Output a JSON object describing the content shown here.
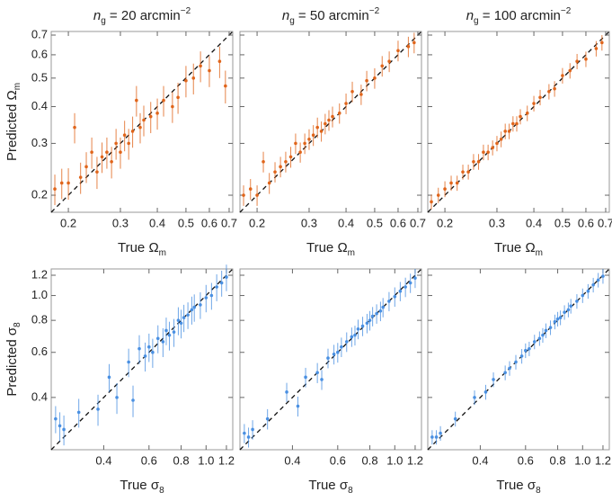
{
  "chart_data": [
    {
      "type": "scatter",
      "title": [
        "n",
        "g",
        " = 20 arcmin",
        "−2"
      ],
      "xlabel": [
        "True Ω",
        "m"
      ],
      "ylabel": [
        "Predicted Ω",
        "m"
      ],
      "color": "#e0651b",
      "xscale": "log",
      "yscale": "log",
      "identity_line": true,
      "xlim": [
        0.175,
        0.72
      ],
      "ylim": [
        0.175,
        0.72
      ],
      "xticks": [
        0.2,
        0.3,
        0.4,
        0.5,
        0.6,
        0.7
      ],
      "yticks": [
        0.2,
        0.3,
        0.4,
        0.5,
        0.6,
        0.7
      ],
      "ytick_labels": true,
      "x": [
        0.18,
        0.19,
        0.2,
        0.21,
        0.22,
        0.23,
        0.24,
        0.25,
        0.26,
        0.27,
        0.28,
        0.29,
        0.3,
        0.31,
        0.32,
        0.33,
        0.34,
        0.35,
        0.36,
        0.38,
        0.4,
        0.42,
        0.45,
        0.47,
        0.5,
        0.53,
        0.56,
        0.6,
        0.65,
        0.68
      ],
      "y": [
        0.21,
        0.22,
        0.22,
        0.34,
        0.23,
        0.25,
        0.28,
        0.24,
        0.27,
        0.28,
        0.26,
        0.3,
        0.28,
        0.32,
        0.3,
        0.33,
        0.42,
        0.34,
        0.36,
        0.37,
        0.38,
        0.42,
        0.4,
        0.43,
        0.49,
        0.5,
        0.55,
        0.53,
        0.57,
        0.47
      ],
      "yerr": [
        0.025,
        0.026,
        0.027,
        0.04,
        0.028,
        0.03,
        0.034,
        0.03,
        0.032,
        0.034,
        0.032,
        0.036,
        0.034,
        0.038,
        0.036,
        0.04,
        0.05,
        0.04,
        0.043,
        0.045,
        0.046,
        0.05,
        0.048,
        0.052,
        0.06,
        0.06,
        0.066,
        0.064,
        0.07,
        0.06
      ]
    },
    {
      "type": "scatter",
      "title": [
        "n",
        "g",
        " = 50 arcmin",
        "−2"
      ],
      "xlabel": [
        "True Ω",
        "m"
      ],
      "color": "#e0651b",
      "xscale": "log",
      "yscale": "log",
      "identity_line": true,
      "xlim": [
        0.175,
        0.72
      ],
      "ylim": [
        0.175,
        0.72
      ],
      "xticks": [
        0.2,
        0.3,
        0.4,
        0.5,
        0.6,
        0.7
      ],
      "yticks": [
        0.2,
        0.3,
        0.4,
        0.5,
        0.6,
        0.7
      ],
      "ytick_labels": false,
      "x": [
        0.18,
        0.19,
        0.2,
        0.21,
        0.22,
        0.23,
        0.24,
        0.25,
        0.26,
        0.27,
        0.28,
        0.29,
        0.3,
        0.31,
        0.32,
        0.33,
        0.34,
        0.35,
        0.36,
        0.38,
        0.4,
        0.42,
        0.45,
        0.47,
        0.5,
        0.53,
        0.56,
        0.6,
        0.65,
        0.68
      ],
      "y": [
        0.2,
        0.21,
        0.2,
        0.26,
        0.22,
        0.24,
        0.25,
        0.26,
        0.27,
        0.3,
        0.28,
        0.3,
        0.31,
        0.32,
        0.34,
        0.33,
        0.35,
        0.36,
        0.37,
        0.38,
        0.41,
        0.45,
        0.44,
        0.49,
        0.5,
        0.55,
        0.57,
        0.62,
        0.64,
        0.66
      ],
      "yerr": [
        0.016,
        0.017,
        0.016,
        0.021,
        0.018,
        0.019,
        0.02,
        0.021,
        0.022,
        0.024,
        0.022,
        0.024,
        0.025,
        0.026,
        0.027,
        0.026,
        0.028,
        0.029,
        0.03,
        0.03,
        0.033,
        0.036,
        0.035,
        0.039,
        0.04,
        0.044,
        0.046,
        0.05,
        0.051,
        0.053
      ]
    },
    {
      "type": "scatter",
      "title": [
        "n",
        "g",
        " = 100 arcmin",
        "−2"
      ],
      "xlabel": [
        "True Ω",
        "m"
      ],
      "color": "#e0651b",
      "xscale": "log",
      "yscale": "log",
      "identity_line": true,
      "xlim": [
        0.175,
        0.72
      ],
      "ylim": [
        0.175,
        0.72
      ],
      "xticks": [
        0.2,
        0.3,
        0.4,
        0.5,
        0.6,
        0.7
      ],
      "yticks": [
        0.2,
        0.3,
        0.4,
        0.5,
        0.6,
        0.7
      ],
      "ytick_labels": false,
      "x": [
        0.18,
        0.19,
        0.2,
        0.21,
        0.22,
        0.23,
        0.24,
        0.25,
        0.26,
        0.27,
        0.28,
        0.29,
        0.3,
        0.31,
        0.32,
        0.33,
        0.34,
        0.35,
        0.36,
        0.38,
        0.4,
        0.42,
        0.45,
        0.47,
        0.5,
        0.53,
        0.56,
        0.6,
        0.65,
        0.68
      ],
      "y": [
        0.19,
        0.2,
        0.21,
        0.22,
        0.22,
        0.24,
        0.24,
        0.26,
        0.26,
        0.28,
        0.28,
        0.29,
        0.3,
        0.31,
        0.33,
        0.33,
        0.35,
        0.35,
        0.37,
        0.38,
        0.41,
        0.43,
        0.45,
        0.46,
        0.51,
        0.53,
        0.57,
        0.58,
        0.63,
        0.66
      ],
      "yerr": [
        0.011,
        0.012,
        0.013,
        0.013,
        0.013,
        0.014,
        0.014,
        0.016,
        0.016,
        0.017,
        0.017,
        0.017,
        0.018,
        0.019,
        0.02,
        0.02,
        0.021,
        0.021,
        0.022,
        0.023,
        0.025,
        0.026,
        0.027,
        0.028,
        0.031,
        0.032,
        0.034,
        0.035,
        0.038,
        0.04
      ]
    },
    {
      "type": "scatter",
      "xlabel": [
        "True σ",
        "8"
      ],
      "ylabel": [
        "Predicted σ",
        "8"
      ],
      "color": "#4a90e2",
      "xscale": "log",
      "yscale": "log",
      "identity_line": true,
      "xlim": [
        0.25,
        1.27
      ],
      "ylim": [
        0.25,
        1.27
      ],
      "xticks": [
        0.4,
        0.6,
        0.8,
        {
          "value": 1,
          "label": "1.0"
        },
        1.2
      ],
      "yticks": [
        0.4,
        0.6,
        0.8,
        {
          "value": 1,
          "label": "1.0"
        },
        1.2
      ],
      "ytick_labels": true,
      "x": [
        0.26,
        0.27,
        0.28,
        0.32,
        0.38,
        0.42,
        0.45,
        0.5,
        0.52,
        0.55,
        0.58,
        0.6,
        0.62,
        0.65,
        0.68,
        0.7,
        0.72,
        0.75,
        0.78,
        0.8,
        0.82,
        0.85,
        0.88,
        0.9,
        0.95,
        1.0,
        1.05,
        1.1,
        1.15,
        1.2
      ],
      "y": [
        0.33,
        0.31,
        0.3,
        0.35,
        0.36,
        0.48,
        0.4,
        0.55,
        0.39,
        0.62,
        0.58,
        0.63,
        0.6,
        0.68,
        0.66,
        0.73,
        0.7,
        0.72,
        0.8,
        0.78,
        0.82,
        0.84,
        0.88,
        0.9,
        0.92,
        0.98,
        1.0,
        1.08,
        1.12,
        1.18
      ],
      "yerr": [
        0.04,
        0.04,
        0.04,
        0.045,
        0.05,
        0.06,
        0.055,
        0.07,
        0.055,
        0.08,
        0.075,
        0.08,
        0.078,
        0.085,
        0.085,
        0.09,
        0.09,
        0.09,
        0.1,
        0.1,
        0.1,
        0.1,
        0.11,
        0.11,
        0.11,
        0.12,
        0.12,
        0.13,
        0.13,
        0.14
      ]
    },
    {
      "type": "scatter",
      "xlabel": [
        "True σ",
        "8"
      ],
      "color": "#4a90e2",
      "xscale": "log",
      "yscale": "log",
      "identity_line": true,
      "xlim": [
        0.25,
        1.27
      ],
      "ylim": [
        0.25,
        1.27
      ],
      "xticks": [
        0.4,
        0.6,
        0.8,
        {
          "value": 1,
          "label": "1.0"
        },
        1.2
      ],
      "yticks": [
        0.4,
        0.6,
        0.8,
        {
          "value": 1,
          "label": "1.0"
        },
        1.2
      ],
      "ytick_labels": false,
      "x": [
        0.26,
        0.27,
        0.28,
        0.32,
        0.38,
        0.42,
        0.45,
        0.5,
        0.52,
        0.55,
        0.58,
        0.6,
        0.62,
        0.65,
        0.68,
        0.7,
        0.72,
        0.75,
        0.78,
        0.8,
        0.82,
        0.85,
        0.88,
        0.9,
        0.95,
        1.0,
        1.05,
        1.1,
        1.15,
        1.2
      ],
      "y": [
        0.29,
        0.28,
        0.3,
        0.33,
        0.42,
        0.37,
        0.48,
        0.5,
        0.47,
        0.57,
        0.59,
        0.6,
        0.63,
        0.66,
        0.69,
        0.7,
        0.74,
        0.76,
        0.78,
        0.8,
        0.83,
        0.85,
        0.87,
        0.9,
        0.95,
        0.99,
        1.04,
        1.08,
        1.12,
        1.17
      ],
      "yerr": [
        0.025,
        0.025,
        0.026,
        0.03,
        0.036,
        0.033,
        0.042,
        0.045,
        0.042,
        0.05,
        0.052,
        0.053,
        0.055,
        0.058,
        0.06,
        0.062,
        0.065,
        0.066,
        0.068,
        0.07,
        0.072,
        0.074,
        0.076,
        0.078,
        0.082,
        0.086,
        0.09,
        0.094,
        0.097,
        0.1
      ]
    },
    {
      "type": "scatter",
      "xlabel": [
        "True σ",
        "8"
      ],
      "color": "#4a90e2",
      "xscale": "log",
      "yscale": "log",
      "identity_line": true,
      "xlim": [
        0.25,
        1.27
      ],
      "ylim": [
        0.25,
        1.27
      ],
      "xticks": [
        0.4,
        0.6,
        0.8,
        {
          "value": 1,
          "label": "1.0"
        },
        1.2
      ],
      "yticks": [
        0.4,
        0.6,
        0.8,
        {
          "value": 1,
          "label": "1.0"
        },
        1.2
      ],
      "ytick_labels": false,
      "x": [
        0.26,
        0.27,
        0.28,
        0.32,
        0.38,
        0.42,
        0.45,
        0.5,
        0.52,
        0.55,
        0.58,
        0.6,
        0.62,
        0.65,
        0.68,
        0.7,
        0.72,
        0.75,
        0.78,
        0.8,
        0.82,
        0.85,
        0.88,
        0.9,
        0.95,
        1.0,
        1.05,
        1.1,
        1.15,
        1.2
      ],
      "y": [
        0.28,
        0.28,
        0.29,
        0.33,
        0.4,
        0.42,
        0.47,
        0.5,
        0.52,
        0.55,
        0.58,
        0.61,
        0.62,
        0.66,
        0.68,
        0.7,
        0.73,
        0.75,
        0.79,
        0.81,
        0.82,
        0.86,
        0.88,
        0.91,
        0.95,
        1.0,
        1.04,
        1.1,
        1.15,
        1.19
      ],
      "yerr": [
        0.018,
        0.018,
        0.019,
        0.022,
        0.026,
        0.028,
        0.031,
        0.033,
        0.034,
        0.036,
        0.038,
        0.04,
        0.04,
        0.043,
        0.044,
        0.046,
        0.048,
        0.049,
        0.052,
        0.053,
        0.054,
        0.056,
        0.058,
        0.06,
        0.062,
        0.065,
        0.068,
        0.072,
        0.075,
        0.078
      ]
    }
  ]
}
